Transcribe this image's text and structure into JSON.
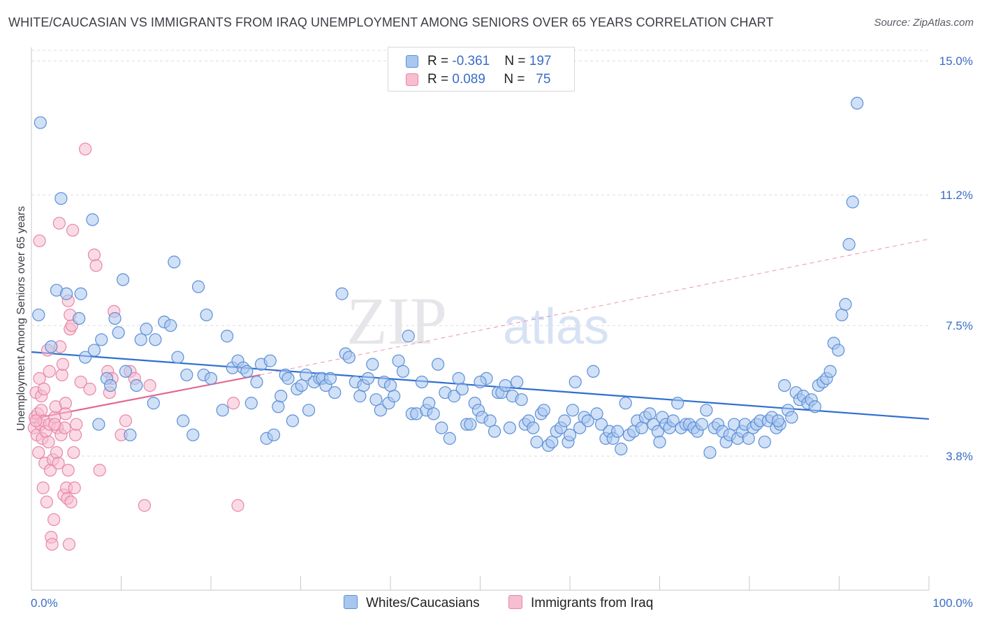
{
  "title": "WHITE/CAUCASIAN VS IMMIGRANTS FROM IRAQ UNEMPLOYMENT AMONG SENIORS OVER 65 YEARS CORRELATION CHART",
  "source": "Source: ZipAtlas.com",
  "watermark": {
    "zip": "ZIP",
    "atlas": "atlas"
  },
  "colors": {
    "blue_fill": "#a9c6ef",
    "blue_stroke": "#5b8fd8",
    "blue_line": "#2f6fd1",
    "pink_fill": "#f6bed0",
    "pink_stroke": "#e886a6",
    "pink_line": "#e2688f",
    "axis_text": "#3a6cc4",
    "grid": "#dcdce0"
  },
  "legend": {
    "series1": {
      "r_label": "R = ",
      "r_value": "-0.361",
      "n_label": "N = ",
      "n_value": "197"
    },
    "series2": {
      "r_label": "R = ",
      "r_value": "0.089",
      "n_label": "N = ",
      "n_value": "75"
    }
  },
  "chart_data": {
    "type": "scatter",
    "title": "WHITE/CAUCASIAN VS IMMIGRANTS FROM IRAQ UNEMPLOYMENT AMONG SENIORS OVER 65 YEARS CORRELATION CHART",
    "xlabel": "",
    "ylabel": "Unemployment Among Seniors over 65 years",
    "xlim": [
      0,
      100
    ],
    "ylim": [
      0,
      15.3
    ],
    "x_tick_labels": [
      "0.0%",
      "100.0%"
    ],
    "y_ticks": [
      3.8,
      7.5,
      11.2,
      15.0
    ],
    "y_tick_labels": [
      "3.8%",
      "7.5%",
      "11.2%",
      "15.0%"
    ],
    "legend_placement": "top-center",
    "series": [
      {
        "name": "Whites/Caucasians",
        "r": -0.361,
        "n": 197,
        "trend": {
          "x": [
            0,
            100
          ],
          "y": [
            6.75,
            4.85
          ]
        },
        "points": [
          [
            1.0,
            13.25
          ],
          [
            3.3,
            11.1
          ],
          [
            6.8,
            10.5
          ],
          [
            0.8,
            7.8
          ],
          [
            2.2,
            6.9
          ],
          [
            2.8,
            8.5
          ],
          [
            3.9,
            8.4
          ],
          [
            5.3,
            7.7
          ],
          [
            5.5,
            8.4
          ],
          [
            6.0,
            6.6
          ],
          [
            7.0,
            6.8
          ],
          [
            7.5,
            4.7
          ],
          [
            7.8,
            7.1
          ],
          [
            8.4,
            6.0
          ],
          [
            8.8,
            5.8
          ],
          [
            9.3,
            7.7
          ],
          [
            9.7,
            7.3
          ],
          [
            10.2,
            8.8
          ],
          [
            10.5,
            6.2
          ],
          [
            11.0,
            4.4
          ],
          [
            11.7,
            5.8
          ],
          [
            12.2,
            7.1
          ],
          [
            12.8,
            7.4
          ],
          [
            13.6,
            5.3
          ],
          [
            13.8,
            7.1
          ],
          [
            14.8,
            7.6
          ],
          [
            15.5,
            7.5
          ],
          [
            15.9,
            9.3
          ],
          [
            16.3,
            6.6
          ],
          [
            16.9,
            4.8
          ],
          [
            17.3,
            6.1
          ],
          [
            18.0,
            4.4
          ],
          [
            18.6,
            8.6
          ],
          [
            19.2,
            6.1
          ],
          [
            19.5,
            7.8
          ],
          [
            20.0,
            6.0
          ],
          [
            21.3,
            5.1
          ],
          [
            21.8,
            7.2
          ],
          [
            22.4,
            6.3
          ],
          [
            23.0,
            6.5
          ],
          [
            23.6,
            6.3
          ],
          [
            24.0,
            6.2
          ],
          [
            24.5,
            5.3
          ],
          [
            25.1,
            5.9
          ],
          [
            25.6,
            6.4
          ],
          [
            26.2,
            4.3
          ],
          [
            26.6,
            6.5
          ],
          [
            27.0,
            4.4
          ],
          [
            27.5,
            5.2
          ],
          [
            27.8,
            5.5
          ],
          [
            28.3,
            6.1
          ],
          [
            28.6,
            6.0
          ],
          [
            29.1,
            4.8
          ],
          [
            29.6,
            5.7
          ],
          [
            30.1,
            5.8
          ],
          [
            30.6,
            6.1
          ],
          [
            30.9,
            5.1
          ],
          [
            31.5,
            5.9
          ],
          [
            32.1,
            6.0
          ],
          [
            32.4,
            6.0
          ],
          [
            32.8,
            5.8
          ],
          [
            33.3,
            6.0
          ],
          [
            33.8,
            5.6
          ],
          [
            34.6,
            8.4
          ],
          [
            35.0,
            6.7
          ],
          [
            35.4,
            6.6
          ],
          [
            36.1,
            5.9
          ],
          [
            36.6,
            5.5
          ],
          [
            37.0,
            5.8
          ],
          [
            37.5,
            6.0
          ],
          [
            38.0,
            6.4
          ],
          [
            38.4,
            5.4
          ],
          [
            38.9,
            5.1
          ],
          [
            39.3,
            5.9
          ],
          [
            39.8,
            5.3
          ],
          [
            40.4,
            5.5
          ],
          [
            40.9,
            6.5
          ],
          [
            41.4,
            6.2
          ],
          [
            42.0,
            7.2
          ],
          [
            42.4,
            5.0
          ],
          [
            42.9,
            5.0
          ],
          [
            43.5,
            5.9
          ],
          [
            44.0,
            5.1
          ],
          [
            44.3,
            5.3
          ],
          [
            44.8,
            5.0
          ],
          [
            45.3,
            6.4
          ],
          [
            45.7,
            4.6
          ],
          [
            46.1,
            5.6
          ],
          [
            46.6,
            4.3
          ],
          [
            47.1,
            5.5
          ],
          [
            47.6,
            6.0
          ],
          [
            48.0,
            5.7
          ],
          [
            48.5,
            4.7
          ],
          [
            48.9,
            4.7
          ],
          [
            49.4,
            5.3
          ],
          [
            49.8,
            5.1
          ],
          [
            50.2,
            4.9
          ],
          [
            50.7,
            6.0
          ],
          [
            51.1,
            4.8
          ],
          [
            51.6,
            4.5
          ],
          [
            52.0,
            5.6
          ],
          [
            52.4,
            5.6
          ],
          [
            52.8,
            5.8
          ],
          [
            53.3,
            4.6
          ],
          [
            53.6,
            5.5
          ],
          [
            54.1,
            5.9
          ],
          [
            54.6,
            5.4
          ],
          [
            55.0,
            4.7
          ],
          [
            55.4,
            4.8
          ],
          [
            55.9,
            4.6
          ],
          [
            56.3,
            4.2
          ],
          [
            56.8,
            5.0
          ],
          [
            57.1,
            5.1
          ],
          [
            57.6,
            4.1
          ],
          [
            58.0,
            4.2
          ],
          [
            58.5,
            4.5
          ],
          [
            59.0,
            4.6
          ],
          [
            59.4,
            4.8
          ],
          [
            59.8,
            4.2
          ],
          [
            60.3,
            5.1
          ],
          [
            60.6,
            5.9
          ],
          [
            61.1,
            4.6
          ],
          [
            61.6,
            4.9
          ],
          [
            62.0,
            4.8
          ],
          [
            62.6,
            6.2
          ],
          [
            63.0,
            5.0
          ],
          [
            63.5,
            4.7
          ],
          [
            64.0,
            4.3
          ],
          [
            64.4,
            4.5
          ],
          [
            64.8,
            4.3
          ],
          [
            65.3,
            4.5
          ],
          [
            65.7,
            4.0
          ],
          [
            66.2,
            5.3
          ],
          [
            66.6,
            4.4
          ],
          [
            67.1,
            4.5
          ],
          [
            67.5,
            4.8
          ],
          [
            68.0,
            4.6
          ],
          [
            68.4,
            4.9
          ],
          [
            68.9,
            5.0
          ],
          [
            69.3,
            4.7
          ],
          [
            69.8,
            4.5
          ],
          [
            70.3,
            4.9
          ],
          [
            70.7,
            4.7
          ],
          [
            71.1,
            4.6
          ],
          [
            71.5,
            4.8
          ],
          [
            72.0,
            5.3
          ],
          [
            72.4,
            4.6
          ],
          [
            72.9,
            4.7
          ],
          [
            73.3,
            4.7
          ],
          [
            73.8,
            4.6
          ],
          [
            74.2,
            4.5
          ],
          [
            74.7,
            4.7
          ],
          [
            75.2,
            5.1
          ],
          [
            75.6,
            3.9
          ],
          [
            76.1,
            4.6
          ],
          [
            76.5,
            4.7
          ],
          [
            77.0,
            4.5
          ],
          [
            77.4,
            4.2
          ],
          [
            77.8,
            4.4
          ],
          [
            78.3,
            4.7
          ],
          [
            78.7,
            4.3
          ],
          [
            79.2,
            4.5
          ],
          [
            79.5,
            4.7
          ],
          [
            79.9,
            4.3
          ],
          [
            80.4,
            4.6
          ],
          [
            80.8,
            4.7
          ],
          [
            81.2,
            4.8
          ],
          [
            81.7,
            4.2
          ],
          [
            82.1,
            4.8
          ],
          [
            82.5,
            4.9
          ],
          [
            83.0,
            4.6
          ],
          [
            83.4,
            4.7
          ],
          [
            83.9,
            5.8
          ],
          [
            84.3,
            5.1
          ],
          [
            84.7,
            4.9
          ],
          [
            85.2,
            5.6
          ],
          [
            85.6,
            5.4
          ],
          [
            86.0,
            5.5
          ],
          [
            86.5,
            5.3
          ],
          [
            86.9,
            5.4
          ],
          [
            87.3,
            5.2
          ],
          [
            87.7,
            5.8
          ],
          [
            88.2,
            5.9
          ],
          [
            88.6,
            6.0
          ],
          [
            89.0,
            6.2
          ],
          [
            89.4,
            7.0
          ],
          [
            89.9,
            6.8
          ],
          [
            90.3,
            7.8
          ],
          [
            90.7,
            8.1
          ],
          [
            91.1,
            9.8
          ],
          [
            91.5,
            11.0
          ],
          [
            92.0,
            13.8
          ],
          [
            83.2,
            4.8
          ],
          [
            70.0,
            4.2
          ],
          [
            60.0,
            4.4
          ],
          [
            50.0,
            5.9
          ],
          [
            40.0,
            5.8
          ]
        ]
      },
      {
        "name": "Immigrants from Iraq",
        "r": 0.089,
        "n": 75,
        "trend": {
          "x": [
            0,
            25.5
          ],
          "y": [
            4.85,
            6.1
          ]
        },
        "trend_dashed": {
          "x": [
            25.5,
            100
          ],
          "y": [
            6.1,
            9.95
          ]
        },
        "points": [
          [
            0.3,
            4.6
          ],
          [
            0.4,
            4.9
          ],
          [
            0.5,
            5.6
          ],
          [
            0.6,
            4.4
          ],
          [
            0.7,
            5.0
          ],
          [
            0.8,
            3.9
          ],
          [
            0.9,
            6.0
          ],
          [
            1.0,
            4.7
          ],
          [
            1.1,
            5.1
          ],
          [
            1.2,
            4.3
          ],
          [
            1.3,
            2.9
          ],
          [
            1.4,
            4.8
          ],
          [
            1.5,
            3.6
          ],
          [
            1.6,
            4.5
          ],
          [
            1.7,
            2.5
          ],
          [
            1.8,
            6.8
          ],
          [
            1.9,
            4.2
          ],
          [
            2.0,
            4.7
          ],
          [
            2.1,
            3.4
          ],
          [
            2.2,
            1.5
          ],
          [
            2.3,
            1.3
          ],
          [
            2.4,
            3.7
          ],
          [
            2.5,
            2.0
          ],
          [
            2.6,
            4.9
          ],
          [
            2.7,
            5.2
          ],
          [
            2.8,
            3.9
          ],
          [
            2.9,
            4.6
          ],
          [
            3.0,
            3.6
          ],
          [
            3.1,
            10.4
          ],
          [
            3.2,
            6.9
          ],
          [
            3.3,
            4.4
          ],
          [
            3.4,
            6.1
          ],
          [
            3.5,
            6.4
          ],
          [
            3.6,
            2.7
          ],
          [
            3.7,
            4.6
          ],
          [
            3.8,
            5.3
          ],
          [
            3.9,
            2.9
          ],
          [
            4.0,
            2.6
          ],
          [
            4.1,
            3.4
          ],
          [
            4.2,
            1.3
          ],
          [
            4.3,
            7.4
          ],
          [
            4.4,
            2.5
          ],
          [
            4.5,
            7.5
          ],
          [
            4.6,
            10.2
          ],
          [
            4.7,
            3.9
          ],
          [
            4.8,
            2.9
          ],
          [
            4.9,
            4.4
          ],
          [
            5.0,
            4.7
          ],
          [
            0.9,
            9.9
          ],
          [
            1.1,
            5.5
          ],
          [
            5.5,
            5.9
          ],
          [
            6.0,
            12.5
          ],
          [
            6.5,
            5.7
          ],
          [
            7.0,
            9.5
          ],
          [
            7.2,
            9.2
          ],
          [
            7.6,
            3.4
          ],
          [
            8.5,
            6.2
          ],
          [
            8.7,
            5.6
          ],
          [
            9.0,
            6.0
          ],
          [
            9.2,
            7.9
          ],
          [
            10.0,
            4.4
          ],
          [
            10.5,
            4.8
          ],
          [
            11.0,
            6.2
          ],
          [
            11.5,
            6.0
          ],
          [
            12.6,
            2.4
          ],
          [
            13.2,
            5.8
          ],
          [
            22.5,
            5.3
          ],
          [
            23.0,
            2.4
          ],
          [
            2.0,
            6.2
          ],
          [
            4.1,
            8.2
          ],
          [
            4.3,
            7.8
          ],
          [
            3.8,
            5.0
          ],
          [
            1.4,
            5.7
          ],
          [
            0.5,
            4.8
          ],
          [
            2.6,
            4.7
          ]
        ]
      }
    ]
  },
  "bottom_legend": {
    "series1": "Whites/Caucasians",
    "series2": "Immigrants from Iraq"
  }
}
